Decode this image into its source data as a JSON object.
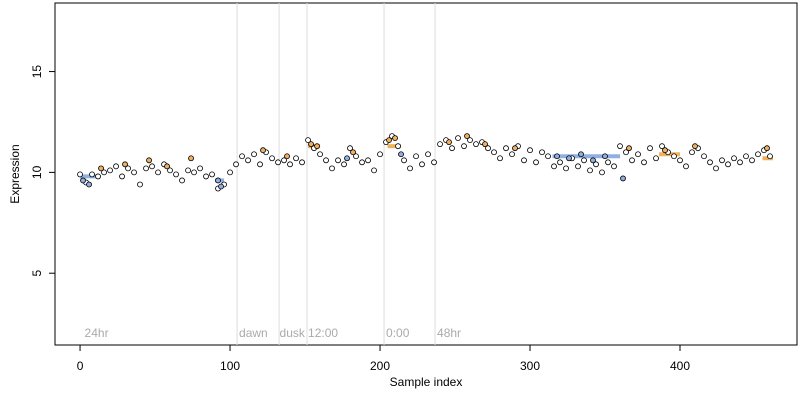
{
  "chart_data": {
    "type": "scatter",
    "xlabel": "Sample index",
    "ylabel": "Expression",
    "xlim": [
      -16.7,
      478
    ],
    "ylim": [
      1.44,
      18.4
    ],
    "xticks": [
      0,
      100,
      200,
      300,
      400
    ],
    "yticks": [
      5,
      10,
      15
    ],
    "vlines": [
      104.7,
      132.7,
      151.3,
      202.7,
      236.7
    ],
    "vline_color": "#dddddd",
    "annotations": [
      {
        "x": 3,
        "text": "24hr"
      },
      {
        "x": 106,
        "text": "dawn"
      },
      {
        "x": 133,
        "text": "dusk"
      },
      {
        "x": 152,
        "text": "12:00"
      },
      {
        "x": 204,
        "text": "0:00"
      },
      {
        "x": 238,
        "text": "48hr"
      }
    ],
    "segments": [
      {
        "x0": 0,
        "x1": 12,
        "y": 9.8,
        "color": "#8fb0e0"
      },
      {
        "x0": 90,
        "x1": 96,
        "y": 9.6,
        "color": "#8fb0e0"
      },
      {
        "x0": 152,
        "x1": 160,
        "y": 11.3,
        "color": "#f0b060"
      },
      {
        "x0": 205,
        "x1": 214,
        "y": 11.3,
        "color": "#f0b060"
      },
      {
        "x0": 315,
        "x1": 360,
        "y": 10.8,
        "color": "#8fb0e0"
      },
      {
        "x0": 386,
        "x1": 400,
        "y": 10.9,
        "color": "#f0b060"
      },
      {
        "x0": 455,
        "x1": 462,
        "y": 10.7,
        "color": "#f0b060"
      }
    ],
    "series": [
      {
        "color": "#ffffff",
        "x": [
          0,
          4,
          8,
          12,
          16,
          20,
          24,
          28,
          32,
          36,
          40,
          44,
          48,
          52,
          56,
          60,
          64,
          68,
          72,
          76,
          80,
          84,
          88,
          92,
          96,
          100,
          104,
          108,
          112,
          116,
          120,
          124,
          128,
          132,
          136,
          140,
          144,
          148,
          152,
          156,
          160,
          164,
          168,
          172,
          176,
          180,
          184,
          188,
          192,
          196,
          200,
          204,
          208,
          212,
          216,
          220,
          224,
          228,
          232,
          236,
          240,
          244,
          248,
          252,
          256,
          260,
          264,
          268,
          272,
          276,
          280,
          284,
          288,
          292,
          296,
          300,
          304,
          308,
          312,
          316,
          320,
          324,
          328,
          332,
          336,
          340,
          344,
          348,
          352,
          356,
          360,
          364,
          368,
          372,
          376,
          380,
          384,
          388,
          392,
          396,
          400,
          404,
          408,
          412,
          416,
          420,
          424,
          428,
          432,
          436,
          440,
          444,
          448,
          452,
          456,
          460
        ],
        "values": [
          9.9,
          9.5,
          9.9,
          9.8,
          10.0,
          10.1,
          10.3,
          9.8,
          10.2,
          10.0,
          9.4,
          10.2,
          10.3,
          10.0,
          10.4,
          10.1,
          9.9,
          9.6,
          10.1,
          10.0,
          10.2,
          9.8,
          9.9,
          9.2,
          9.4,
          10.0,
          10.4,
          10.8,
          10.6,
          10.9,
          10.4,
          11.0,
          10.7,
          10.5,
          10.6,
          10.4,
          10.7,
          10.5,
          11.6,
          11.2,
          10.9,
          10.6,
          10.2,
          10.6,
          10.4,
          11.2,
          10.8,
          10.5,
          10.6,
          10.1,
          10.9,
          11.5,
          11.8,
          11.3,
          10.6,
          10.2,
          10.8,
          10.4,
          10.9,
          10.5,
          11.4,
          11.6,
          11.2,
          11.7,
          11.3,
          11.6,
          11.4,
          11.5,
          11.2,
          11.0,
          10.7,
          11.2,
          10.9,
          11.3,
          10.6,
          11.1,
          10.5,
          11.0,
          10.8,
          10.3,
          10.5,
          10.2,
          10.7,
          10.3,
          10.6,
          10.1,
          10.4,
          10.0,
          10.5,
          10.3,
          11.3,
          11.0,
          10.6,
          10.9,
          10.5,
          11.2,
          10.7,
          11.3,
          11.0,
          10.8,
          10.6,
          10.3,
          11.0,
          11.2,
          10.8,
          10.5,
          10.2,
          10.6,
          10.4,
          10.7,
          10.5,
          10.8,
          10.6,
          10.9,
          11.1,
          10.8
        ]
      },
      {
        "color": "#f0b060",
        "x": [
          14,
          30,
          46,
          58,
          74,
          122,
          138,
          154,
          158,
          182,
          206,
          210,
          246,
          258,
          270,
          290,
          366,
          390,
          410,
          458
        ],
        "values": [
          10.2,
          10.4,
          10.6,
          10.3,
          10.7,
          11.1,
          10.8,
          11.4,
          11.3,
          11.0,
          11.6,
          11.7,
          11.5,
          11.8,
          11.4,
          11.2,
          11.2,
          11.1,
          11.3,
          11.2
        ]
      },
      {
        "color": "#8fb0e0",
        "x": [
          2,
          6,
          92,
          94,
          178,
          214,
          318,
          326,
          334,
          342,
          350,
          362
        ],
        "values": [
          9.6,
          9.4,
          9.6,
          9.3,
          10.7,
          10.9,
          10.8,
          10.7,
          10.9,
          10.6,
          10.8,
          9.7
        ]
      }
    ]
  }
}
